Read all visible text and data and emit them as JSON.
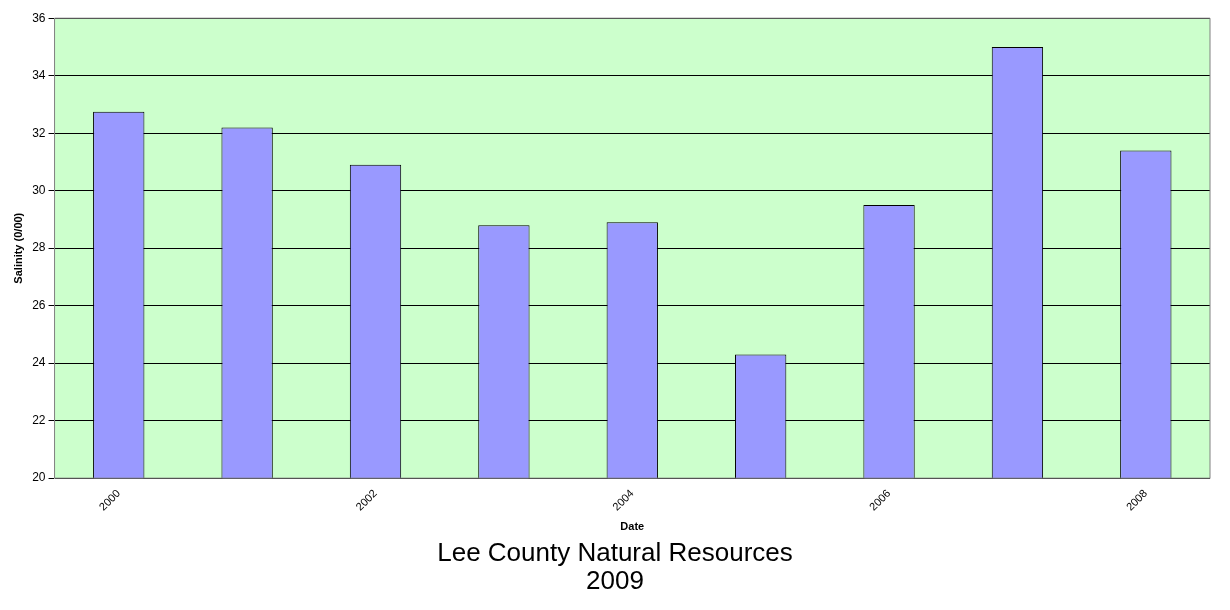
{
  "chart_data": {
    "type": "bar",
    "xlabel": "Date",
    "ylabel": "Salinity (0/00)",
    "categories": [
      "2000",
      null,
      "2002",
      null,
      "2004",
      null,
      "2006",
      null,
      "2008"
    ],
    "values": [
      32.75,
      32.2,
      30.9,
      28.8,
      28.9,
      24.3,
      29.5,
      35.0,
      31.4
    ],
    "color": "#9999ff",
    "ylim": [
      20,
      36
    ],
    "yticks": [
      20,
      22,
      24,
      26,
      28,
      30,
      32,
      34,
      36
    ],
    "grid": "y",
    "legend": false,
    "annotations": [
      "Lee County Natural Resources",
      "2009"
    ]
  }
}
